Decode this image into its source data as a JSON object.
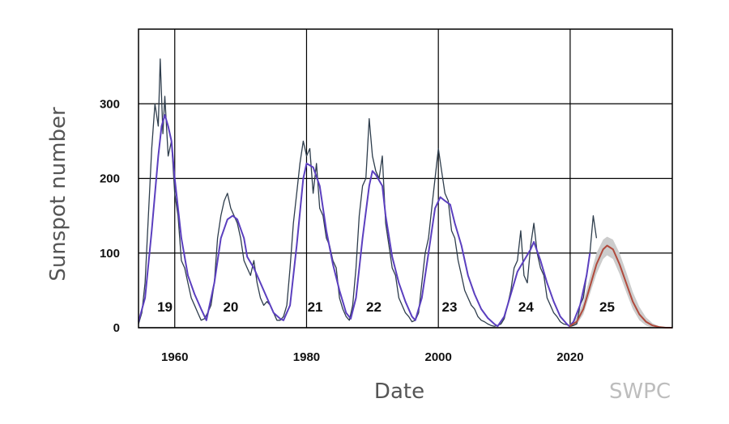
{
  "chart_data": {
    "type": "line",
    "xlabel": "Date",
    "ylabel": "Sunspot number",
    "credit": "SWPC",
    "xlim": [
      1954.5,
      2035.5
    ],
    "ylim": [
      0,
      400
    ],
    "x_ticks": [
      1960,
      1980,
      2000,
      2020
    ],
    "y_ticks": [
      0,
      100,
      200,
      300
    ],
    "grid": true,
    "cycle_labels": [
      {
        "text": "19",
        "x": 1958.5,
        "y": 28
      },
      {
        "text": "20",
        "x": 1968.5,
        "y": 28
      },
      {
        "text": "21",
        "x": 1981.3,
        "y": 28
      },
      {
        "text": "22",
        "x": 1990.2,
        "y": 28
      },
      {
        "text": "23",
        "x": 2001.7,
        "y": 28
      },
      {
        "text": "24",
        "x": 2013.3,
        "y": 28
      },
      {
        "text": "25",
        "x": 2025.6,
        "y": 28
      }
    ],
    "colors": {
      "monthly": "#2e3d4c",
      "smoothed": "#5b3fbf",
      "prediction": "#b04a3c",
      "prediction_band": "#cccccc"
    },
    "series": [
      {
        "style": "monthly",
        "x": [
          1954.5,
          1955.0,
          1955.5,
          1956.0,
          1956.5,
          1957.0,
          1957.5,
          1957.8,
          1958.2,
          1958.5,
          1959.0,
          1959.5,
          1960.0,
          1960.5,
          1961.0,
          1961.5,
          1962.0,
          1962.5,
          1963.0,
          1963.5,
          1964.0,
          1964.5,
          1965.0,
          1965.5,
          1966.0,
          1966.5,
          1967.0,
          1967.5,
          1968.0,
          1968.5,
          1969.0,
          1969.5,
          1970.0,
          1970.5,
          1971.0,
          1971.5,
          1972.0,
          1972.5,
          1973.0,
          1973.5,
          1974.0,
          1974.5,
          1975.0,
          1975.5,
          1976.0,
          1976.5,
          1977.0,
          1977.5,
          1978.0,
          1978.5,
          1979.0,
          1979.5,
          1980.0,
          1980.5,
          1981.0,
          1981.5,
          1982.0,
          1982.5,
          1983.0,
          1983.5,
          1984.0,
          1984.5,
          1985.0,
          1985.5,
          1986.0,
          1986.5,
          1987.0,
          1987.5,
          1988.0,
          1988.5,
          1989.0,
          1989.5,
          1990.0,
          1990.5,
          1991.0,
          1991.5,
          1992.0,
          1992.5,
          1993.0,
          1993.5,
          1994.0,
          1994.5,
          1995.0,
          1995.5,
          1996.0,
          1996.5,
          1997.0,
          1997.5,
          1998.0,
          1998.5,
          1999.0,
          1999.5,
          2000.0,
          2000.5,
          2001.0,
          2001.5,
          2002.0,
          2002.5,
          2003.0,
          2003.5,
          2004.0,
          2004.5,
          2005.0,
          2005.5,
          2006.0,
          2006.5,
          2007.0,
          2007.5,
          2008.0,
          2008.5,
          2009.0,
          2009.5,
          2010.0,
          2010.5,
          2011.0,
          2011.5,
          2012.0,
          2012.5,
          2013.0,
          2013.5,
          2014.0,
          2014.5,
          2015.0,
          2015.5,
          2016.0,
          2016.5,
          2017.0,
          2017.5,
          2018.0,
          2018.5,
          2019.0,
          2019.5,
          2020.0,
          2020.5,
          2021.0,
          2021.5,
          2022.0,
          2022.5,
          2023.0,
          2023.5,
          2024.0
        ],
        "values": [
          5,
          20,
          60,
          150,
          240,
          300,
          270,
          360,
          260,
          310,
          230,
          250,
          180,
          150,
          90,
          80,
          60,
          40,
          30,
          20,
          10,
          12,
          20,
          30,
          60,
          120,
          150,
          170,
          180,
          160,
          150,
          140,
          120,
          90,
          80,
          70,
          90,
          60,
          40,
          30,
          35,
          30,
          20,
          10,
          10,
          15,
          30,
          80,
          140,
          180,
          220,
          250,
          230,
          240,
          180,
          220,
          160,
          150,
          120,
          110,
          90,
          80,
          40,
          25,
          15,
          10,
          30,
          80,
          150,
          190,
          200,
          280,
          230,
          210,
          200,
          230,
          140,
          110,
          80,
          70,
          40,
          30,
          20,
          15,
          8,
          10,
          20,
          60,
          100,
          120,
          160,
          200,
          240,
          210,
          180,
          170,
          130,
          120,
          90,
          70,
          50,
          40,
          30,
          25,
          15,
          10,
          8,
          5,
          3,
          2,
          3,
          5,
          12,
          30,
          50,
          80,
          90,
          130,
          70,
          60,
          110,
          140,
          100,
          80,
          70,
          40,
          30,
          20,
          15,
          8,
          5,
          4,
          2,
          3,
          5,
          30,
          40,
          70,
          100,
          150,
          120
        ]
      },
      {
        "style": "smoothed",
        "x": [
          1954.5,
          1955.5,
          1956.5,
          1957.5,
          1958.0,
          1958.5,
          1959.0,
          1959.5,
          1960.0,
          1961.0,
          1962.0,
          1963.0,
          1964.0,
          1964.8,
          1966.0,
          1967.0,
          1968.0,
          1968.8,
          1969.5,
          1970.5,
          1971.0,
          1972.0,
          1973.0,
          1974.0,
          1975.0,
          1976.0,
          1976.5,
          1977.5,
          1978.5,
          1979.5,
          1980.0,
          1981.0,
          1982.0,
          1983.0,
          1984.0,
          1985.0,
          1986.0,
          1986.7,
          1987.5,
          1988.5,
          1989.5,
          1990.0,
          1990.5,
          1991.5,
          1992.0,
          1993.0,
          1994.0,
          1995.0,
          1996.0,
          1996.5,
          1997.5,
          1998.5,
          1999.5,
          2000.3,
          2001.0,
          2001.8,
          2002.5,
          2003.5,
          2004.5,
          2005.5,
          2006.5,
          2007.5,
          2008.5,
          2009.0,
          2010.0,
          2011.0,
          2012.0,
          2013.0,
          2014.0,
          2014.5,
          2015.5,
          2016.5,
          2017.5,
          2018.5,
          2019.5,
          2019.9,
          2020.5,
          2021.5,
          2022.5,
          2023.0
        ],
        "values": [
          8,
          40,
          130,
          230,
          270,
          285,
          270,
          250,
          200,
          120,
          70,
          45,
          25,
          10,
          60,
          120,
          145,
          150,
          145,
          120,
          95,
          80,
          60,
          40,
          20,
          12,
          10,
          30,
          110,
          200,
          220,
          215,
          190,
          130,
          85,
          50,
          20,
          12,
          40,
          120,
          190,
          210,
          205,
          190,
          150,
          95,
          60,
          35,
          15,
          10,
          40,
          100,
          160,
          175,
          170,
          165,
          140,
          110,
          70,
          45,
          25,
          13,
          5,
          2,
          15,
          45,
          75,
          90,
          105,
          115,
          90,
          60,
          35,
          15,
          5,
          2,
          8,
          30,
          70,
          100
        ]
      },
      {
        "style": "prediction",
        "x": [
          2019.9,
          2021.0,
          2022.0,
          2023.0,
          2024.0,
          2025.0,
          2025.6,
          2026.5,
          2027.5,
          2028.5,
          2029.5,
          2030.5,
          2031.5,
          2032.5,
          2033.5,
          2034.5,
          2035.5
        ],
        "values": [
          2,
          8,
          25,
          55,
          85,
          105,
          110,
          105,
          85,
          60,
          35,
          18,
          8,
          3,
          1,
          0,
          0
        ],
        "lower": [
          0,
          4,
          18,
          45,
          72,
          92,
          97,
          92,
          72,
          48,
          25,
          10,
          3,
          0,
          0,
          0,
          0
        ],
        "upper": [
          4,
          14,
          35,
          68,
          100,
          118,
          122,
          118,
          100,
          75,
          48,
          28,
          14,
          6,
          2,
          1,
          0
        ]
      }
    ]
  }
}
